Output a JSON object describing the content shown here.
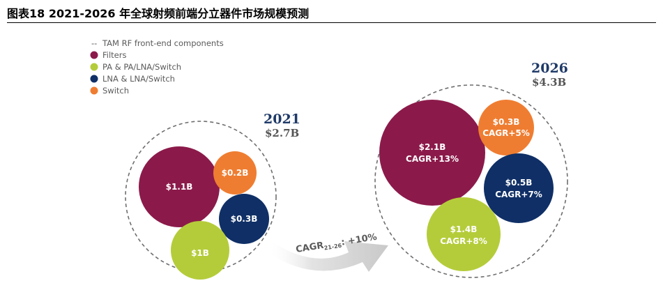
{
  "figure": {
    "title": "图表18    2021-2026 年全球射频前端分立器件市场规模预测"
  },
  "chart_data": {
    "type": "bubble",
    "legend": {
      "placement": "top-left",
      "total_label": "TAM RF front-end components",
      "entries": [
        {
          "key": "filters",
          "label": "Filters",
          "color": "#8b1a4a"
        },
        {
          "key": "pa",
          "label": "PA & PA/LNA/Switch",
          "color": "#b5cc3a"
        },
        {
          "key": "lna",
          "label": "LNA & LNA/Switch",
          "color": "#0f2f66"
        },
        {
          "key": "switch",
          "label": "Switch",
          "color": "#ef7d31"
        }
      ]
    },
    "years": [
      {
        "year": "2021",
        "total_label": "$2.7B",
        "total_value": 2.7,
        "components": [
          {
            "key": "filters",
            "label": "$1.1B",
            "value": 1.1
          },
          {
            "key": "switch",
            "label": "$0.2B",
            "value": 0.2
          },
          {
            "key": "lna",
            "label": "$0.3B",
            "value": 0.3
          },
          {
            "key": "pa",
            "label": "$1B",
            "value": 1.0
          }
        ]
      },
      {
        "year": "2026",
        "total_label": "$4.3B",
        "total_value": 4.3,
        "components": [
          {
            "key": "filters",
            "label": "$2.1B",
            "value": 2.1,
            "cagr": "CAGR+13%"
          },
          {
            "key": "switch",
            "label": "$0.3B",
            "value": 0.3,
            "cagr": "CAGR+5%"
          },
          {
            "key": "lna",
            "label": "$0.5B",
            "value": 0.5,
            "cagr": "CAGR+7%"
          },
          {
            "key": "pa",
            "label": "$1.4B",
            "value": 1.4,
            "cagr": "CAGR+8%"
          }
        ]
      }
    ],
    "overall_cagr": {
      "prefix": "CAGR",
      "sub": "21-26",
      "suffix": ": +10%"
    }
  }
}
